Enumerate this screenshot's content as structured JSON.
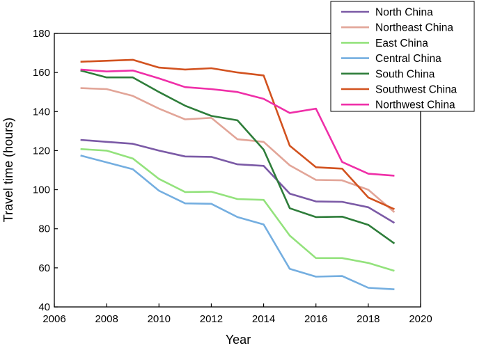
{
  "chart_data": {
    "type": "line",
    "title": "",
    "xlabel": "Year",
    "ylabel": "Travel time (hours)",
    "xlim": [
      2006,
      2020
    ],
    "ylim": [
      40,
      180
    ],
    "xticks": [
      2006,
      2008,
      2010,
      2012,
      2014,
      2016,
      2018,
      2020
    ],
    "yticks": [
      40,
      60,
      80,
      100,
      120,
      140,
      160,
      180
    ],
    "grid": false,
    "legend_position": "top-right",
    "x": [
      2007,
      2008,
      2009,
      2010,
      2011,
      2012,
      2013,
      2014,
      2015,
      2016,
      2017,
      2018,
      2019
    ],
    "series": [
      {
        "name": "North China",
        "color": "#7b5aa6",
        "values": [
          125.5,
          124.5,
          123.5,
          120.0,
          117.0,
          116.8,
          113.0,
          112.2,
          98.0,
          94.0,
          93.8,
          91.0,
          83.0
        ]
      },
      {
        "name": "Northeast China",
        "color": "#e2a598",
        "values": [
          152.0,
          151.5,
          148.0,
          141.5,
          136.0,
          136.8,
          125.8,
          124.5,
          112.5,
          105.0,
          104.8,
          100.0,
          88.5
        ]
      },
      {
        "name": "East China",
        "color": "#93e27c",
        "values": [
          120.8,
          120.0,
          116.0,
          105.5,
          98.8,
          99.0,
          95.2,
          94.8,
          76.5,
          65.0,
          65.0,
          62.5,
          58.5
        ]
      },
      {
        "name": "Central China",
        "color": "#74aee0",
        "values": [
          117.5,
          114.0,
          110.5,
          99.5,
          93.0,
          92.8,
          86.0,
          82.2,
          59.5,
          55.5,
          55.8,
          49.8,
          49.0
        ]
      },
      {
        "name": "South China",
        "color": "#2e7d3a",
        "values": [
          161.0,
          157.5,
          157.5,
          150.0,
          143.0,
          137.8,
          135.5,
          120.5,
          90.5,
          86.0,
          86.2,
          82.0,
          72.5
        ]
      },
      {
        "name": "Southwest China",
        "color": "#d2521f",
        "values": [
          165.5,
          166.0,
          166.5,
          162.5,
          161.5,
          162.2,
          160.0,
          158.5,
          122.5,
          111.5,
          110.8,
          96.0,
          90.0
        ]
      },
      {
        "name": "Northwest China",
        "color": "#ef2fa8",
        "values": [
          161.5,
          160.5,
          161.0,
          157.0,
          152.5,
          151.5,
          150.0,
          146.5,
          139.3,
          141.5,
          114.2,
          108.2,
          107.2
        ]
      }
    ]
  }
}
